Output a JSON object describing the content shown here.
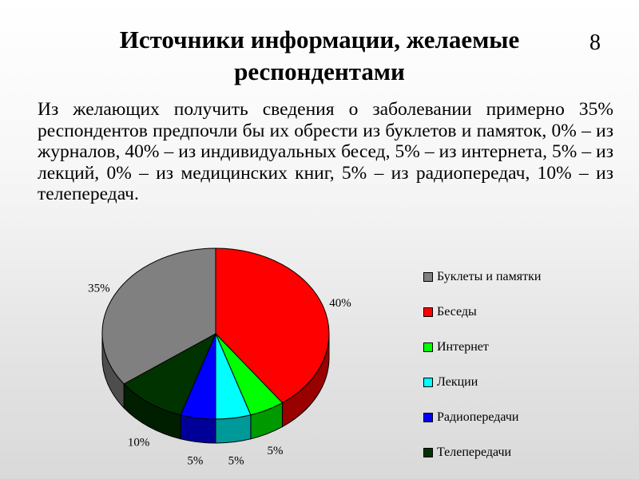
{
  "slide": {
    "title": "Источники информации, желаемые респондентами",
    "number": "8",
    "text": "Из желающих получить сведения о заболевании примерно 35% респондентов предпочли бы их обрести из буклетов и памяток, 0% – из журналов, 40% – из индивидуальных бесед, 5% – из интернета, 5% – из лекций, 0% – из медицинских книг, 5% – из радиопередач, 10% – из телепередач."
  },
  "chart_data": {
    "type": "pie",
    "three_d": true,
    "start_angle_deg": 0,
    "direction": "clockwise",
    "legend_position": "right",
    "slices": [
      {
        "label": "Беседы",
        "value": 40,
        "data_label": "40%",
        "color": "#FF0000"
      },
      {
        "label": "Интернет",
        "value": 5,
        "data_label": "5%",
        "color": "#00FF00"
      },
      {
        "label": "Лекции",
        "value": 5,
        "data_label": "5%",
        "color": "#00FFFF"
      },
      {
        "label": "Радиопередачи",
        "value": 5,
        "data_label": "5%",
        "color": "#0000FF"
      },
      {
        "label": "Телепередачи",
        "value": 10,
        "data_label": "10%",
        "color": "#003300"
      },
      {
        "label": "Буклеты и памятки",
        "value": 35,
        "data_label": "35%",
        "color": "#808080"
      }
    ],
    "legend": [
      {
        "label": "Буклеты и памятки",
        "color": "#808080"
      },
      {
        "label": "Беседы",
        "color": "#FF0000"
      },
      {
        "label": "Интернет",
        "color": "#00FF00"
      },
      {
        "label": "Лекции",
        "color": "#00FFFF"
      },
      {
        "label": "Радиопередачи",
        "color": "#0000FF"
      },
      {
        "label": "Телепередачи",
        "color": "#003300"
      }
    ]
  }
}
